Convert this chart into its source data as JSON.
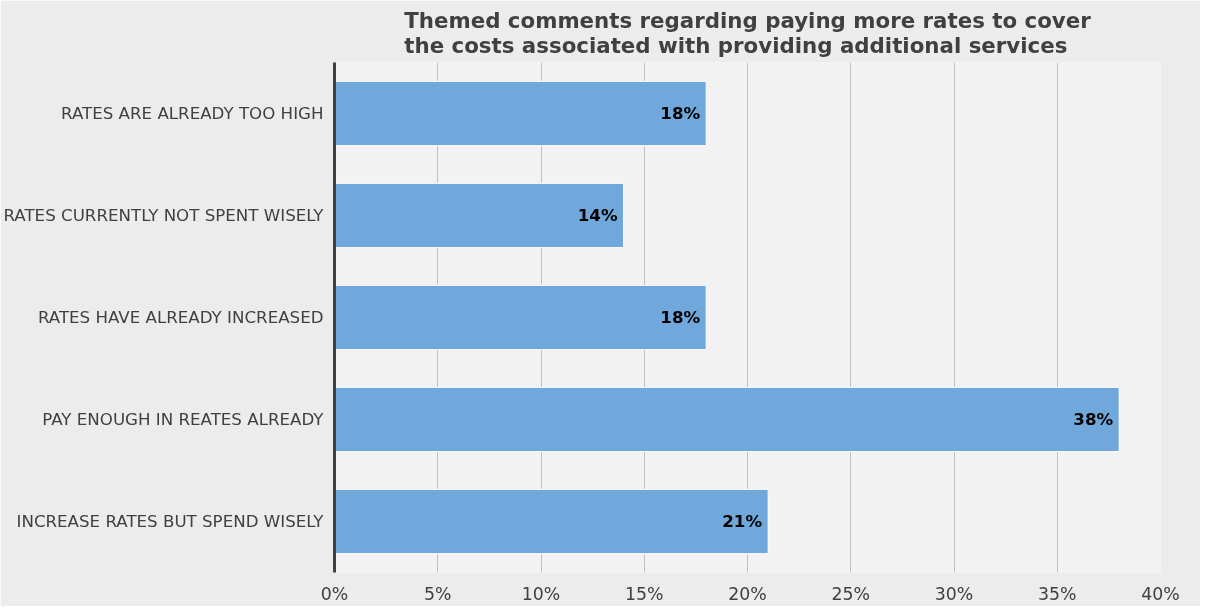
{
  "chart_data": {
    "type": "bar",
    "orientation": "horizontal",
    "title": "Themed comments regarding paying more rates to cover the costs associated with providing additional services",
    "categories": [
      "RATES ARE ALREADY TOO HIGH",
      "RATES CURRENTLY NOT SPENT WISELY",
      "RATES HAVE ALREADY INCREASED",
      "PAY ENOUGH IN REATES ALREADY",
      "INCREASE RATES BUT SPEND WISELY"
    ],
    "values": [
      18,
      14,
      18,
      38,
      21
    ],
    "value_labels": [
      "18%",
      "14%",
      "18%",
      "38%",
      "21%"
    ],
    "color": "#70a8db",
    "xlim": [
      0,
      40
    ],
    "xticks": [
      {
        "value": 0,
        "label": "0%"
      },
      {
        "value": 5,
        "label": "5%"
      },
      {
        "value": 10,
        "label": "10%"
      },
      {
        "value": 15,
        "label": "15%"
      },
      {
        "value": 20,
        "label": "20%"
      },
      {
        "value": 25,
        "label": "25%"
      },
      {
        "value": 30,
        "label": "30%"
      },
      {
        "value": 35,
        "label": "35%"
      },
      {
        "value": 40,
        "label": "40%"
      }
    ],
    "grid": "x"
  }
}
